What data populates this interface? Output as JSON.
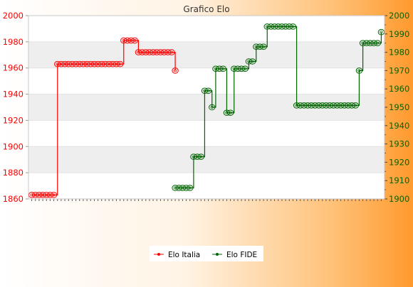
{
  "chart_data": {
    "type": "line",
    "title": "Grafico Elo",
    "xlabel": "",
    "ylabel": "",
    "y_left": {
      "min": 1860,
      "max": 2000,
      "ticks": [
        1860,
        1880,
        1900,
        1920,
        1940,
        1960,
        1980,
        2000
      ]
    },
    "y_right": {
      "min": 1900,
      "max": 2000,
      "ticks": [
        1900,
        1910,
        1920,
        1930,
        1940,
        1950,
        1960,
        1970,
        1980,
        1990,
        2000
      ]
    },
    "grid": true,
    "legend": {
      "position": "bottom",
      "entries": [
        "Elo Italia",
        "Elo FIDE"
      ]
    },
    "x_tick_count": 96,
    "x_tick_labels_note": "",
    "colors": {
      "italia": "#ff0000",
      "fide": "#006400",
      "band": "#eeeeee"
    },
    "series": [
      {
        "name": "Elo Italia",
        "axis": "left",
        "color": "#ff0000",
        "x": [
          0,
          1,
          2,
          3,
          4,
          5,
          6,
          7,
          8,
          9,
          10,
          11,
          12,
          13,
          14,
          15,
          16,
          17,
          18,
          19,
          20,
          21,
          22,
          23,
          24,
          25,
          26,
          27,
          28,
          29,
          30,
          31,
          32,
          33,
          34,
          35,
          36,
          37,
          38,
          39
        ],
        "values": [
          1863,
          1863,
          1863,
          1863,
          1863,
          1863,
          1863,
          1963,
          1963,
          1963,
          1963,
          1963,
          1963,
          1963,
          1963,
          1963,
          1963,
          1963,
          1963,
          1963,
          1963,
          1963,
          1963,
          1963,
          1963,
          1981,
          1981,
          1981,
          1981,
          1972,
          1972,
          1972,
          1972,
          1972,
          1972,
          1972,
          1972,
          1972,
          1972,
          1958
        ]
      },
      {
        "name": "Elo FIDE",
        "axis": "right",
        "color": "#006400",
        "x": [
          39,
          40,
          41,
          42,
          43,
          44,
          45,
          46,
          47,
          48,
          49,
          50,
          51,
          52,
          53,
          54,
          55,
          56,
          57,
          58,
          59,
          60,
          61,
          62,
          63,
          64,
          65,
          66,
          67,
          68,
          69,
          70,
          71,
          72,
          73,
          74,
          75,
          76,
          77,
          78,
          79,
          80,
          81,
          82,
          83,
          84,
          85,
          86,
          87,
          88,
          89,
          90,
          91,
          92,
          93,
          94,
          95
        ],
        "values": [
          1906,
          1906,
          1906,
          1906,
          1906,
          1923,
          1923,
          1923,
          1959,
          1959,
          1950,
          1971,
          1971,
          1971,
          1947,
          1947,
          1971,
          1971,
          1971,
          1971,
          1975,
          1975,
          1983,
          1983,
          1983,
          1994,
          1994,
          1994,
          1994,
          1994,
          1994,
          1994,
          1994,
          1951,
          1951,
          1951,
          1951,
          1951,
          1951,
          1951,
          1951,
          1951,
          1951,
          1951,
          1951,
          1951,
          1951,
          1951,
          1951,
          1951,
          1970,
          1985,
          1985,
          1985,
          1985,
          1985,
          1991
        ]
      }
    ]
  }
}
